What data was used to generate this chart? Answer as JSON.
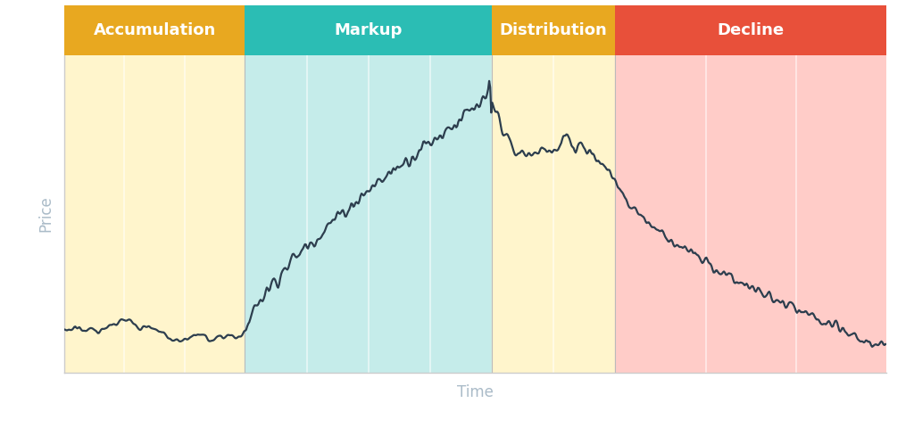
{
  "phases": [
    "Accumulation",
    "Markup",
    "Distribution",
    "Decline"
  ],
  "phase_colors_header": [
    "#E8A820",
    "#2BBDB4",
    "#E8A820",
    "#E8503A"
  ],
  "phase_colors_bg": [
    "#FFF5CC",
    "#C5ECEA",
    "#FFF5CC",
    "#FFCCC8"
  ],
  "phase_boundaries": [
    0.0,
    0.22,
    0.52,
    0.67,
    1.0
  ],
  "header_color_text": "#FFFFFF",
  "line_color": "#2D3E4E",
  "axis_label_color": "#AABBC8",
  "background_color": "#FFFFFF",
  "xlabel": "Time",
  "ylabel": "Price",
  "label_fontsize": 12,
  "n_stripes_per_phase": [
    3,
    4,
    2,
    3
  ]
}
